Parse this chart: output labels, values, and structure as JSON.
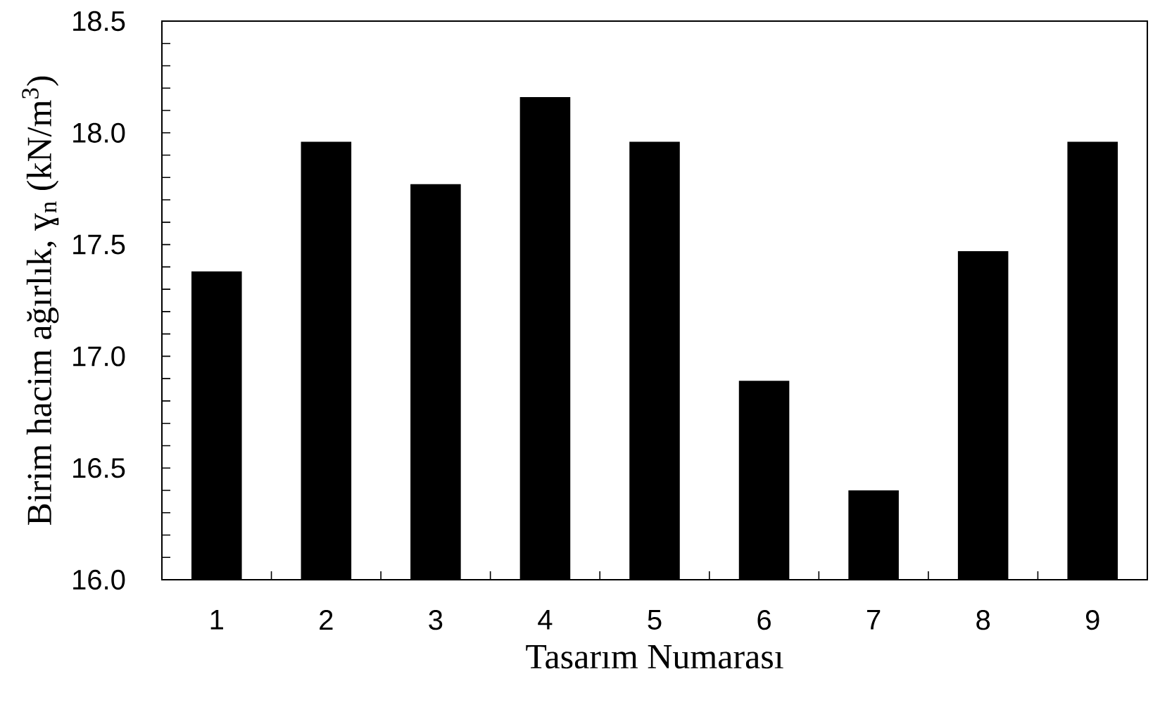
{
  "chart_data": {
    "type": "bar",
    "xlabel": "Tasarım Numarası",
    "ylabel": "Birim hacim ağırlık, ɣ$_{n}$ (kN/m$^{3}$)",
    "categories": [
      "1",
      "2",
      "3",
      "4",
      "5",
      "6",
      "7",
      "8",
      "9"
    ],
    "values": [
      17.38,
      17.96,
      17.77,
      18.16,
      17.96,
      16.89,
      16.4,
      17.47,
      17.96
    ],
    "color": "#000000",
    "ylim": [
      16.0,
      18.5
    ],
    "yticks": [
      {
        "value": 16.0,
        "label": "16.0"
      },
      {
        "value": 16.5,
        "label": "16.5"
      },
      {
        "value": 17.0,
        "label": "17.0"
      },
      {
        "value": 17.5,
        "label": "17.5"
      },
      {
        "value": 18.0,
        "label": "18.0"
      },
      {
        "value": 18.5,
        "label": "18.5"
      }
    ],
    "grid": false
  }
}
